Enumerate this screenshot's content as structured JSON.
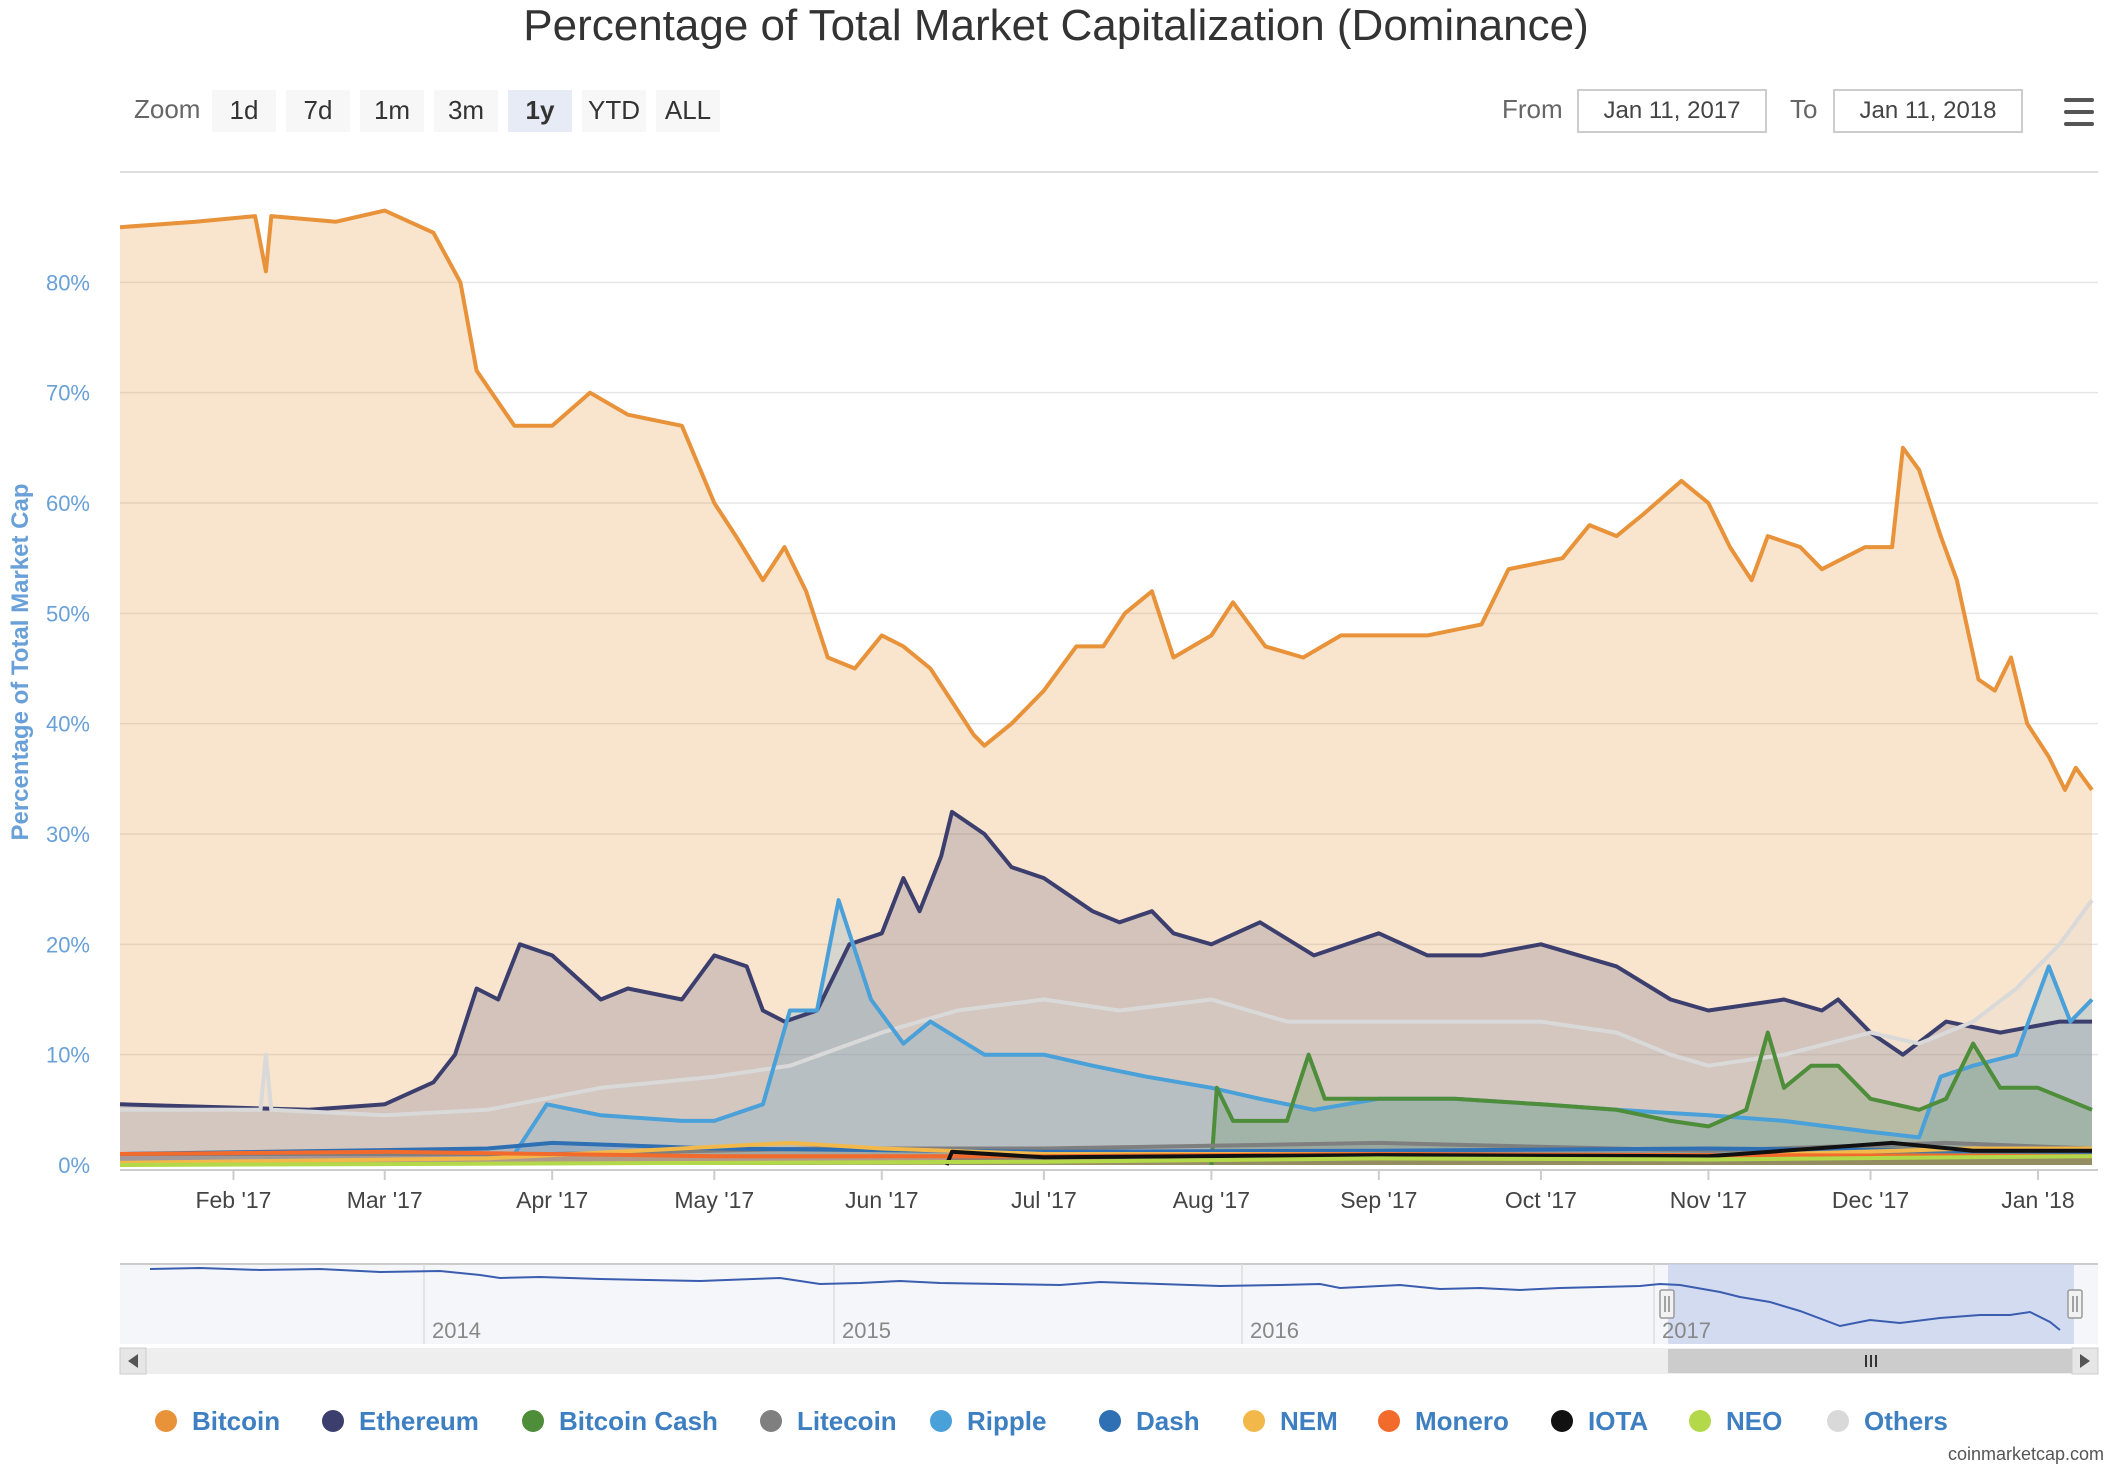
{
  "toolbar": {
    "zoom_label": "Zoom",
    "zoom_buttons": [
      "1d",
      "7d",
      "1m",
      "3m",
      "1y",
      "YTD",
      "ALL"
    ],
    "active_zoom": "1y",
    "from_label": "From",
    "from_value": "Jan 11, 2017",
    "to_label": "To",
    "to_value": "Jan 11, 2018"
  },
  "navigator": {
    "years": [
      "2014",
      "2015",
      "2016",
      "2017"
    ]
  },
  "credit": "coinmarketcap.com",
  "chart_data": {
    "type": "area",
    "title": "Percentage of Total Market Capitalization (Dominance)",
    "ylabel": "Percentage of Total Market Cap",
    "xlabel": "",
    "ylim": [
      0,
      90
    ],
    "xlim": [
      "2017-01-11",
      "2018-01-11"
    ],
    "y_ticks": [
      "0%",
      "10%",
      "20%",
      "30%",
      "40%",
      "50%",
      "60%",
      "70%",
      "80%"
    ],
    "x_ticks": [
      {
        "date": "2017-02-01",
        "label": "Feb '17"
      },
      {
        "date": "2017-03-01",
        "label": "Mar '17"
      },
      {
        "date": "2017-04-01",
        "label": "Apr '17"
      },
      {
        "date": "2017-05-01",
        "label": "May '17"
      },
      {
        "date": "2017-06-01",
        "label": "Jun '17"
      },
      {
        "date": "2017-07-01",
        "label": "Jul '17"
      },
      {
        "date": "2017-08-01",
        "label": "Aug '17"
      },
      {
        "date": "2017-09-01",
        "label": "Sep '17"
      },
      {
        "date": "2017-10-01",
        "label": "Oct '17"
      },
      {
        "date": "2017-11-01",
        "label": "Nov '17"
      },
      {
        "date": "2017-12-01",
        "label": "Dec '17"
      },
      {
        "date": "2018-01-01",
        "label": "Jan '18"
      }
    ],
    "grid": true,
    "legend_position": "bottom",
    "series": [
      {
        "name": "Bitcoin",
        "color": "#e8923a",
        "points": [
          [
            "2017-01-11",
            85
          ],
          [
            "2017-01-25",
            85.5
          ],
          [
            "2017-02-05",
            86
          ],
          [
            "2017-02-07",
            81
          ],
          [
            "2017-02-08",
            86
          ],
          [
            "2017-02-20",
            85.5
          ],
          [
            "2017-03-01",
            86.5
          ],
          [
            "2017-03-10",
            84.5
          ],
          [
            "2017-03-15",
            80
          ],
          [
            "2017-03-18",
            72
          ],
          [
            "2017-03-25",
            67
          ],
          [
            "2017-04-01",
            67
          ],
          [
            "2017-04-08",
            70
          ],
          [
            "2017-04-15",
            68
          ],
          [
            "2017-04-25",
            67
          ],
          [
            "2017-05-01",
            60
          ],
          [
            "2017-05-05",
            57
          ],
          [
            "2017-05-10",
            53
          ],
          [
            "2017-05-14",
            56
          ],
          [
            "2017-05-18",
            52
          ],
          [
            "2017-05-22",
            46
          ],
          [
            "2017-05-27",
            45
          ],
          [
            "2017-06-01",
            48
          ],
          [
            "2017-06-05",
            47
          ],
          [
            "2017-06-10",
            45
          ],
          [
            "2017-06-14",
            42
          ],
          [
            "2017-06-18",
            39
          ],
          [
            "2017-06-20",
            38
          ],
          [
            "2017-06-25",
            40
          ],
          [
            "2017-07-01",
            43
          ],
          [
            "2017-07-07",
            47
          ],
          [
            "2017-07-12",
            47
          ],
          [
            "2017-07-16",
            50
          ],
          [
            "2017-07-21",
            52
          ],
          [
            "2017-07-25",
            46
          ],
          [
            "2017-08-01",
            48
          ],
          [
            "2017-08-05",
            51
          ],
          [
            "2017-08-11",
            47
          ],
          [
            "2017-08-18",
            46
          ],
          [
            "2017-08-25",
            48
          ],
          [
            "2017-09-01",
            48
          ],
          [
            "2017-09-10",
            48
          ],
          [
            "2017-09-20",
            49
          ],
          [
            "2017-09-25",
            54
          ],
          [
            "2017-10-05",
            55
          ],
          [
            "2017-10-10",
            58
          ],
          [
            "2017-10-15",
            57
          ],
          [
            "2017-10-20",
            59
          ],
          [
            "2017-10-27",
            62
          ],
          [
            "2017-11-01",
            60
          ],
          [
            "2017-11-05",
            56
          ],
          [
            "2017-11-09",
            53
          ],
          [
            "2017-11-12",
            57
          ],
          [
            "2017-11-18",
            56
          ],
          [
            "2017-11-22",
            54
          ],
          [
            "2017-11-30",
            56
          ],
          [
            "2017-12-05",
            56
          ],
          [
            "2017-12-07",
            65
          ],
          [
            "2017-12-10",
            63
          ],
          [
            "2017-12-14",
            57
          ],
          [
            "2017-12-17",
            53
          ],
          [
            "2017-12-21",
            44
          ],
          [
            "2017-12-24",
            43
          ],
          [
            "2017-12-27",
            46
          ],
          [
            "2017-12-30",
            40
          ],
          [
            "2018-01-03",
            37
          ],
          [
            "2018-01-06",
            34
          ],
          [
            "2018-01-08",
            36
          ],
          [
            "2018-01-11",
            34
          ]
        ]
      },
      {
        "name": "Ethereum",
        "color": "#3c3f6e",
        "points": [
          [
            "2017-01-11",
            5.5
          ],
          [
            "2017-02-01",
            5.2
          ],
          [
            "2017-02-15",
            5
          ],
          [
            "2017-03-01",
            5.5
          ],
          [
            "2017-03-10",
            7.5
          ],
          [
            "2017-03-14",
            10
          ],
          [
            "2017-03-18",
            16
          ],
          [
            "2017-03-22",
            15
          ],
          [
            "2017-03-26",
            20
          ],
          [
            "2017-04-01",
            19
          ],
          [
            "2017-04-10",
            15
          ],
          [
            "2017-04-15",
            16
          ],
          [
            "2017-04-25",
            15
          ],
          [
            "2017-05-01",
            19
          ],
          [
            "2017-05-07",
            18
          ],
          [
            "2017-05-10",
            14
          ],
          [
            "2017-05-14",
            13
          ],
          [
            "2017-05-20",
            14
          ],
          [
            "2017-05-26",
            20
          ],
          [
            "2017-06-01",
            21
          ],
          [
            "2017-06-05",
            26
          ],
          [
            "2017-06-08",
            23
          ],
          [
            "2017-06-12",
            28
          ],
          [
            "2017-06-14",
            32
          ],
          [
            "2017-06-20",
            30
          ],
          [
            "2017-06-25",
            27
          ],
          [
            "2017-07-01",
            26
          ],
          [
            "2017-07-10",
            23
          ],
          [
            "2017-07-15",
            22
          ],
          [
            "2017-07-21",
            23
          ],
          [
            "2017-07-25",
            21
          ],
          [
            "2017-08-01",
            20
          ],
          [
            "2017-08-10",
            22
          ],
          [
            "2017-08-20",
            19
          ],
          [
            "2017-09-01",
            21
          ],
          [
            "2017-09-10",
            19
          ],
          [
            "2017-09-20",
            19
          ],
          [
            "2017-10-01",
            20
          ],
          [
            "2017-10-15",
            18
          ],
          [
            "2017-10-25",
            15
          ],
          [
            "2017-11-01",
            14
          ],
          [
            "2017-11-15",
            15
          ],
          [
            "2017-11-22",
            14
          ],
          [
            "2017-11-25",
            15
          ],
          [
            "2017-12-01",
            12
          ],
          [
            "2017-12-07",
            10
          ],
          [
            "2017-12-15",
            13
          ],
          [
            "2017-12-25",
            12
          ],
          [
            "2018-01-05",
            13
          ],
          [
            "2018-01-11",
            13
          ]
        ]
      },
      {
        "name": "Bitcoin Cash",
        "color": "#4e8d3a",
        "points": [
          [
            "2017-08-01",
            0
          ],
          [
            "2017-08-02",
            7
          ],
          [
            "2017-08-05",
            4
          ],
          [
            "2017-08-15",
            4
          ],
          [
            "2017-08-19",
            10
          ],
          [
            "2017-08-22",
            6
          ],
          [
            "2017-09-01",
            6
          ],
          [
            "2017-09-15",
            6
          ],
          [
            "2017-10-01",
            5.5
          ],
          [
            "2017-10-15",
            5
          ],
          [
            "2017-10-25",
            4
          ],
          [
            "2017-11-01",
            3.5
          ],
          [
            "2017-11-08",
            5
          ],
          [
            "2017-11-12",
            12
          ],
          [
            "2017-11-15",
            7
          ],
          [
            "2017-11-20",
            9
          ],
          [
            "2017-11-25",
            9
          ],
          [
            "2017-12-01",
            6
          ],
          [
            "2017-12-10",
            5
          ],
          [
            "2017-12-15",
            6
          ],
          [
            "2017-12-20",
            11
          ],
          [
            "2017-12-25",
            7
          ],
          [
            "2018-01-01",
            7
          ],
          [
            "2018-01-11",
            5
          ]
        ]
      },
      {
        "name": "Ripple",
        "color": "#4aa0d8",
        "points": [
          [
            "2017-01-11",
            1
          ],
          [
            "2017-03-01",
            1
          ],
          [
            "2017-03-25",
            1
          ],
          [
            "2017-03-31",
            5.5
          ],
          [
            "2017-04-10",
            4.5
          ],
          [
            "2017-04-25",
            4
          ],
          [
            "2017-05-01",
            4
          ],
          [
            "2017-05-10",
            5.5
          ],
          [
            "2017-05-15",
            14
          ],
          [
            "2017-05-20",
            14
          ],
          [
            "2017-05-24",
            24
          ],
          [
            "2017-05-30",
            15
          ],
          [
            "2017-06-05",
            11
          ],
          [
            "2017-06-10",
            13
          ],
          [
            "2017-06-20",
            10
          ],
          [
            "2017-07-01",
            10
          ],
          [
            "2017-07-10",
            9
          ],
          [
            "2017-07-20",
            8
          ],
          [
            "2017-08-01",
            7
          ],
          [
            "2017-08-10",
            6
          ],
          [
            "2017-08-20",
            5
          ],
          [
            "2017-09-01",
            6
          ],
          [
            "2017-09-15",
            6
          ],
          [
            "2017-10-01",
            5.5
          ],
          [
            "2017-10-15",
            5
          ],
          [
            "2017-11-01",
            4.5
          ],
          [
            "2017-11-15",
            4
          ],
          [
            "2017-12-01",
            3
          ],
          [
            "2017-12-10",
            2.5
          ],
          [
            "2017-12-14",
            8
          ],
          [
            "2017-12-20",
            9
          ],
          [
            "2017-12-28",
            10
          ],
          [
            "2018-01-03",
            18
          ],
          [
            "2018-01-07",
            13
          ],
          [
            "2018-01-11",
            15
          ]
        ]
      },
      {
        "name": "Others",
        "color": "#d9d9d9",
        "points": [
          [
            "2017-01-11",
            5
          ],
          [
            "2017-02-01",
            5
          ],
          [
            "2017-02-06",
            5
          ],
          [
            "2017-02-07",
            10
          ],
          [
            "2017-02-08",
            5
          ],
          [
            "2017-03-01",
            4.5
          ],
          [
            "2017-03-20",
            5
          ],
          [
            "2017-04-10",
            7
          ],
          [
            "2017-05-01",
            8
          ],
          [
            "2017-05-15",
            9
          ],
          [
            "2017-06-01",
            12
          ],
          [
            "2017-06-15",
            14
          ],
          [
            "2017-07-01",
            15
          ],
          [
            "2017-07-15",
            14
          ],
          [
            "2017-08-01",
            15
          ],
          [
            "2017-08-15",
            13
          ],
          [
            "2017-09-01",
            13
          ],
          [
            "2017-09-15",
            13
          ],
          [
            "2017-10-01",
            13
          ],
          [
            "2017-10-15",
            12
          ],
          [
            "2017-10-25",
            10
          ],
          [
            "2017-11-01",
            9
          ],
          [
            "2017-11-15",
            10
          ],
          [
            "2017-12-01",
            12
          ],
          [
            "2017-12-10",
            11
          ],
          [
            "2017-12-20",
            13
          ],
          [
            "2017-12-28",
            16
          ],
          [
            "2018-01-05",
            20
          ],
          [
            "2018-01-11",
            24
          ]
        ]
      },
      {
        "name": "Litecoin",
        "color": "#7f7f7f",
        "points": [
          [
            "2017-01-11",
            1
          ],
          [
            "2017-04-01",
            1
          ],
          [
            "2017-05-20",
            1.5
          ],
          [
            "2017-07-01",
            1.5
          ],
          [
            "2017-09-01",
            2
          ],
          [
            "2017-11-01",
            1.3
          ],
          [
            "2017-12-15",
            2
          ],
          [
            "2018-01-11",
            1.5
          ]
        ]
      },
      {
        "name": "Dash",
        "color": "#2f6fb3",
        "points": [
          [
            "2017-01-11",
            1
          ],
          [
            "2017-03-20",
            1.5
          ],
          [
            "2017-04-01",
            2
          ],
          [
            "2017-05-01",
            1.5
          ],
          [
            "2017-07-01",
            1.2
          ],
          [
            "2017-09-01",
            1.3
          ],
          [
            "2017-11-01",
            1.5
          ],
          [
            "2017-12-15",
            1.3
          ],
          [
            "2018-01-11",
            1.2
          ]
        ]
      },
      {
        "name": "NEM",
        "color": "#f2b94a",
        "points": [
          [
            "2017-01-11",
            0.2
          ],
          [
            "2017-03-20",
            0.6
          ],
          [
            "2017-05-15",
            2
          ],
          [
            "2017-06-01",
            1.5
          ],
          [
            "2017-07-01",
            1
          ],
          [
            "2017-09-01",
            1
          ],
          [
            "2017-11-01",
            0.8
          ],
          [
            "2017-12-20",
            1.5
          ],
          [
            "2018-01-11",
            1.5
          ]
        ]
      },
      {
        "name": "Monero",
        "color": "#f26b2d",
        "points": [
          [
            "2017-01-11",
            1
          ],
          [
            "2017-03-01",
            1.2
          ],
          [
            "2017-05-01",
            0.8
          ],
          [
            "2017-07-01",
            0.8
          ],
          [
            "2017-09-01",
            1
          ],
          [
            "2017-11-01",
            0.9
          ],
          [
            "2018-01-11",
            0.8
          ]
        ]
      },
      {
        "name": "IOTA",
        "color": "#111111",
        "points": [
          [
            "2017-06-13",
            0
          ],
          [
            "2017-06-14",
            1.2
          ],
          [
            "2017-07-01",
            0.7
          ],
          [
            "2017-09-01",
            0.9
          ],
          [
            "2017-11-01",
            0.8
          ],
          [
            "2017-12-05",
            2
          ],
          [
            "2017-12-20",
            1.3
          ],
          [
            "2018-01-11",
            1.3
          ]
        ]
      },
      {
        "name": "NEO",
        "color": "#b3d94a",
        "points": [
          [
            "2017-01-11",
            0
          ],
          [
            "2017-07-01",
            0.3
          ],
          [
            "2017-09-01",
            0.6
          ],
          [
            "2017-11-01",
            0.5
          ],
          [
            "2018-01-11",
            0.8
          ]
        ]
      }
    ]
  }
}
